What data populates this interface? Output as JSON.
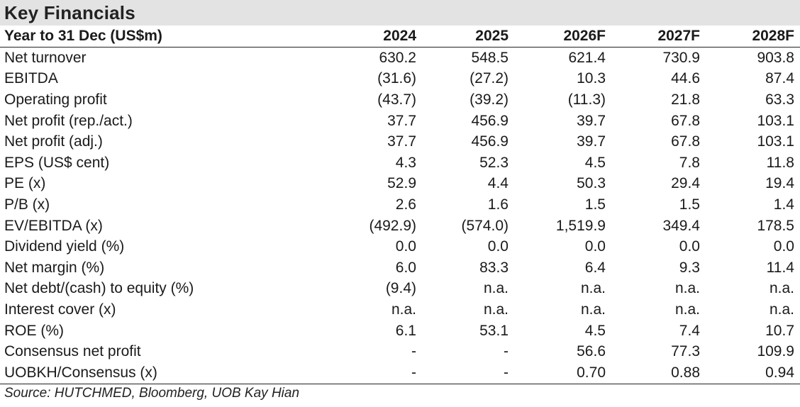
{
  "title": "Key Financials",
  "header": {
    "label": "Year to 31 Dec (US$m)",
    "years": [
      "2024",
      "2025",
      "2026F",
      "2027F",
      "2028F"
    ]
  },
  "rows": [
    {
      "label": "Net turnover",
      "values": [
        "630.2",
        "548.5",
        "621.4",
        "730.9",
        "903.8"
      ]
    },
    {
      "label": "EBITDA",
      "values": [
        "(31.6)",
        "(27.2)",
        "10.3",
        "44.6",
        "87.4"
      ]
    },
    {
      "label": "Operating profit",
      "values": [
        "(43.7)",
        "(39.2)",
        "(11.3)",
        "21.8",
        "63.3"
      ]
    },
    {
      "label": "Net profit (rep./act.)",
      "values": [
        "37.7",
        "456.9",
        "39.7",
        "67.8",
        "103.1"
      ]
    },
    {
      "label": "Net profit (adj.)",
      "values": [
        "37.7",
        "456.9",
        "39.7",
        "67.8",
        "103.1"
      ]
    },
    {
      "label": "EPS (US$ cent)",
      "values": [
        "4.3",
        "52.3",
        "4.5",
        "7.8",
        "11.8"
      ]
    },
    {
      "label": "PE (x)",
      "values": [
        "52.9",
        "4.4",
        "50.3",
        "29.4",
        "19.4"
      ]
    },
    {
      "label": "P/B (x)",
      "values": [
        "2.6",
        "1.6",
        "1.5",
        "1.5",
        "1.4"
      ]
    },
    {
      "label": "EV/EBITDA (x)",
      "values": [
        "(492.9)",
        "(574.0)",
        "1,519.9",
        "349.4",
        "178.5"
      ]
    },
    {
      "label": "Dividend yield (%)",
      "values": [
        "0.0",
        "0.0",
        "0.0",
        "0.0",
        "0.0"
      ]
    },
    {
      "label": "Net margin (%)",
      "values": [
        "6.0",
        "83.3",
        "6.4",
        "9.3",
        "11.4"
      ]
    },
    {
      "label": "Net debt/(cash) to equity (%)",
      "values": [
        "(9.4)",
        "n.a.",
        "n.a.",
        "n.a.",
        "n.a."
      ]
    },
    {
      "label": "Interest cover (x)",
      "values": [
        "n.a.",
        "n.a.",
        "n.a.",
        "n.a.",
        "n.a."
      ]
    },
    {
      "label": "ROE (%)",
      "values": [
        "6.1",
        "53.1",
        "4.5",
        "7.4",
        "10.7"
      ]
    },
    {
      "label": "Consensus net profit",
      "values": [
        "-",
        "-",
        "56.6",
        "77.3",
        "109.9"
      ]
    },
    {
      "label": "UOBKH/Consensus (x)",
      "values": [
        "-",
        "-",
        "0.70",
        "0.88",
        "0.94"
      ]
    }
  ],
  "source": "Source: HUTCHMED, Bloomberg, UOB Kay Hian"
}
